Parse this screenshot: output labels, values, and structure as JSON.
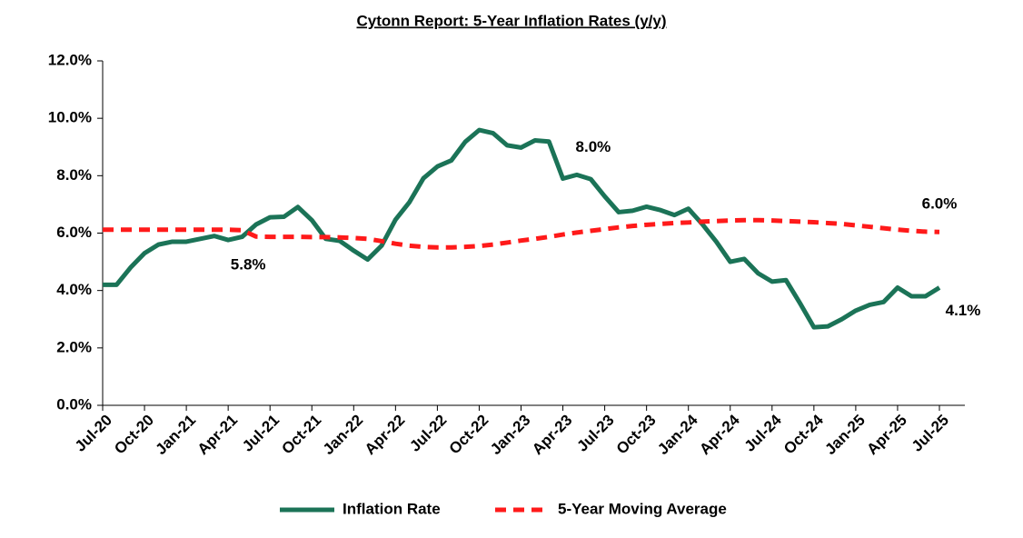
{
  "chart_data": {
    "type": "line",
    "title": "Cytonn Report: 5-Year Inflation Rates (y/y)",
    "categories": [
      "Jul-20",
      null,
      null,
      "Oct-20",
      null,
      null,
      "Jan-21",
      null,
      null,
      "Apr-21",
      null,
      null,
      "Jul-21",
      null,
      null,
      "Oct-21",
      null,
      null,
      "Jan-22",
      null,
      null,
      "Apr-22",
      null,
      null,
      "Jul-22",
      null,
      null,
      "Oct-22",
      null,
      null,
      "Jan-23",
      null,
      null,
      "Apr-23",
      null,
      null,
      "Jul-23",
      null,
      null,
      "Oct-23",
      null,
      null,
      "Jan-24",
      null,
      null,
      "Apr-24",
      null,
      null,
      "Jul-24",
      null,
      null,
      "Oct-24",
      null,
      null,
      "Jan-25",
      null,
      null,
      "Apr-25",
      null,
      null,
      "Jul-25"
    ],
    "series": [
      {
        "name": "Inflation Rate",
        "color": "#1b7357",
        "values": [
          4.2,
          4.2,
          4.8,
          5.3,
          5.6,
          5.7,
          5.7,
          5.8,
          5.9,
          5.76,
          5.87,
          6.3,
          6.55,
          6.57,
          6.91,
          6.45,
          5.8,
          5.73,
          5.39,
          5.08,
          5.56,
          6.47,
          7.08,
          7.91,
          8.32,
          8.53,
          9.18,
          9.59,
          9.48,
          9.06,
          8.98,
          9.23,
          9.19,
          7.9,
          8.03,
          7.88,
          7.28,
          6.73,
          6.78,
          6.92,
          6.8,
          6.63,
          6.85,
          6.31,
          5.7,
          5.0,
          5.1,
          4.6,
          4.31,
          4.36,
          3.56,
          2.72,
          2.75,
          3.0,
          3.3,
          3.5,
          3.6,
          4.1,
          3.8,
          3.8,
          4.1
        ],
        "value_labels": [
          null,
          null,
          null,
          null,
          null,
          null,
          null,
          null,
          null,
          "5.8%",
          null,
          null,
          null,
          null,
          null,
          null,
          null,
          null,
          null,
          null,
          null,
          null,
          null,
          null,
          null,
          null,
          null,
          null,
          null,
          null,
          null,
          null,
          null,
          null,
          "8.0%",
          null,
          null,
          null,
          null,
          null,
          null,
          null,
          null,
          null,
          null,
          null,
          null,
          null,
          null,
          null,
          null,
          null,
          null,
          null,
          null,
          null,
          null,
          null,
          null,
          null,
          "4.1%"
        ]
      },
      {
        "name": "5-Year Moving Average",
        "color": "#ff1a1a",
        "dashed": true,
        "values": [
          6.12,
          6.12,
          6.12,
          6.12,
          6.12,
          6.12,
          6.12,
          6.12,
          6.12,
          6.12,
          6.1,
          5.88,
          5.87,
          5.87,
          5.87,
          5.86,
          5.86,
          5.85,
          5.83,
          5.8,
          5.72,
          5.63,
          5.56,
          5.52,
          5.5,
          5.5,
          5.52,
          5.55,
          5.6,
          5.67,
          5.74,
          5.8,
          5.87,
          5.95,
          6.02,
          6.08,
          6.14,
          6.2,
          6.25,
          6.29,
          6.32,
          6.35,
          6.37,
          6.4,
          6.42,
          6.44,
          6.45,
          6.45,
          6.44,
          6.42,
          6.4,
          6.38,
          6.35,
          6.32,
          6.27,
          6.22,
          6.17,
          6.12,
          6.08,
          6.05,
          6.04
        ],
        "value_labels": [
          null,
          null,
          null,
          null,
          null,
          null,
          null,
          null,
          null,
          null,
          null,
          null,
          null,
          null,
          null,
          null,
          null,
          null,
          null,
          null,
          null,
          null,
          null,
          null,
          null,
          null,
          null,
          null,
          null,
          null,
          null,
          null,
          null,
          null,
          null,
          null,
          null,
          null,
          null,
          null,
          null,
          null,
          null,
          null,
          null,
          null,
          null,
          null,
          null,
          null,
          null,
          null,
          null,
          null,
          null,
          null,
          null,
          null,
          null,
          null,
          "6.0%"
        ]
      }
    ],
    "ylim": [
      0,
      12
    ],
    "yticks": [
      {
        "value": 0,
        "label": "0.0%"
      },
      {
        "value": 2,
        "label": "2.0%"
      },
      {
        "value": 4,
        "label": "4.0%"
      },
      {
        "value": 6,
        "label": "6.0%"
      },
      {
        "value": 8,
        "label": "8.0%"
      },
      {
        "value": 10,
        "label": "10.0%"
      },
      {
        "value": 12,
        "label": "12.0%"
      }
    ],
    "legend": "bottom"
  }
}
